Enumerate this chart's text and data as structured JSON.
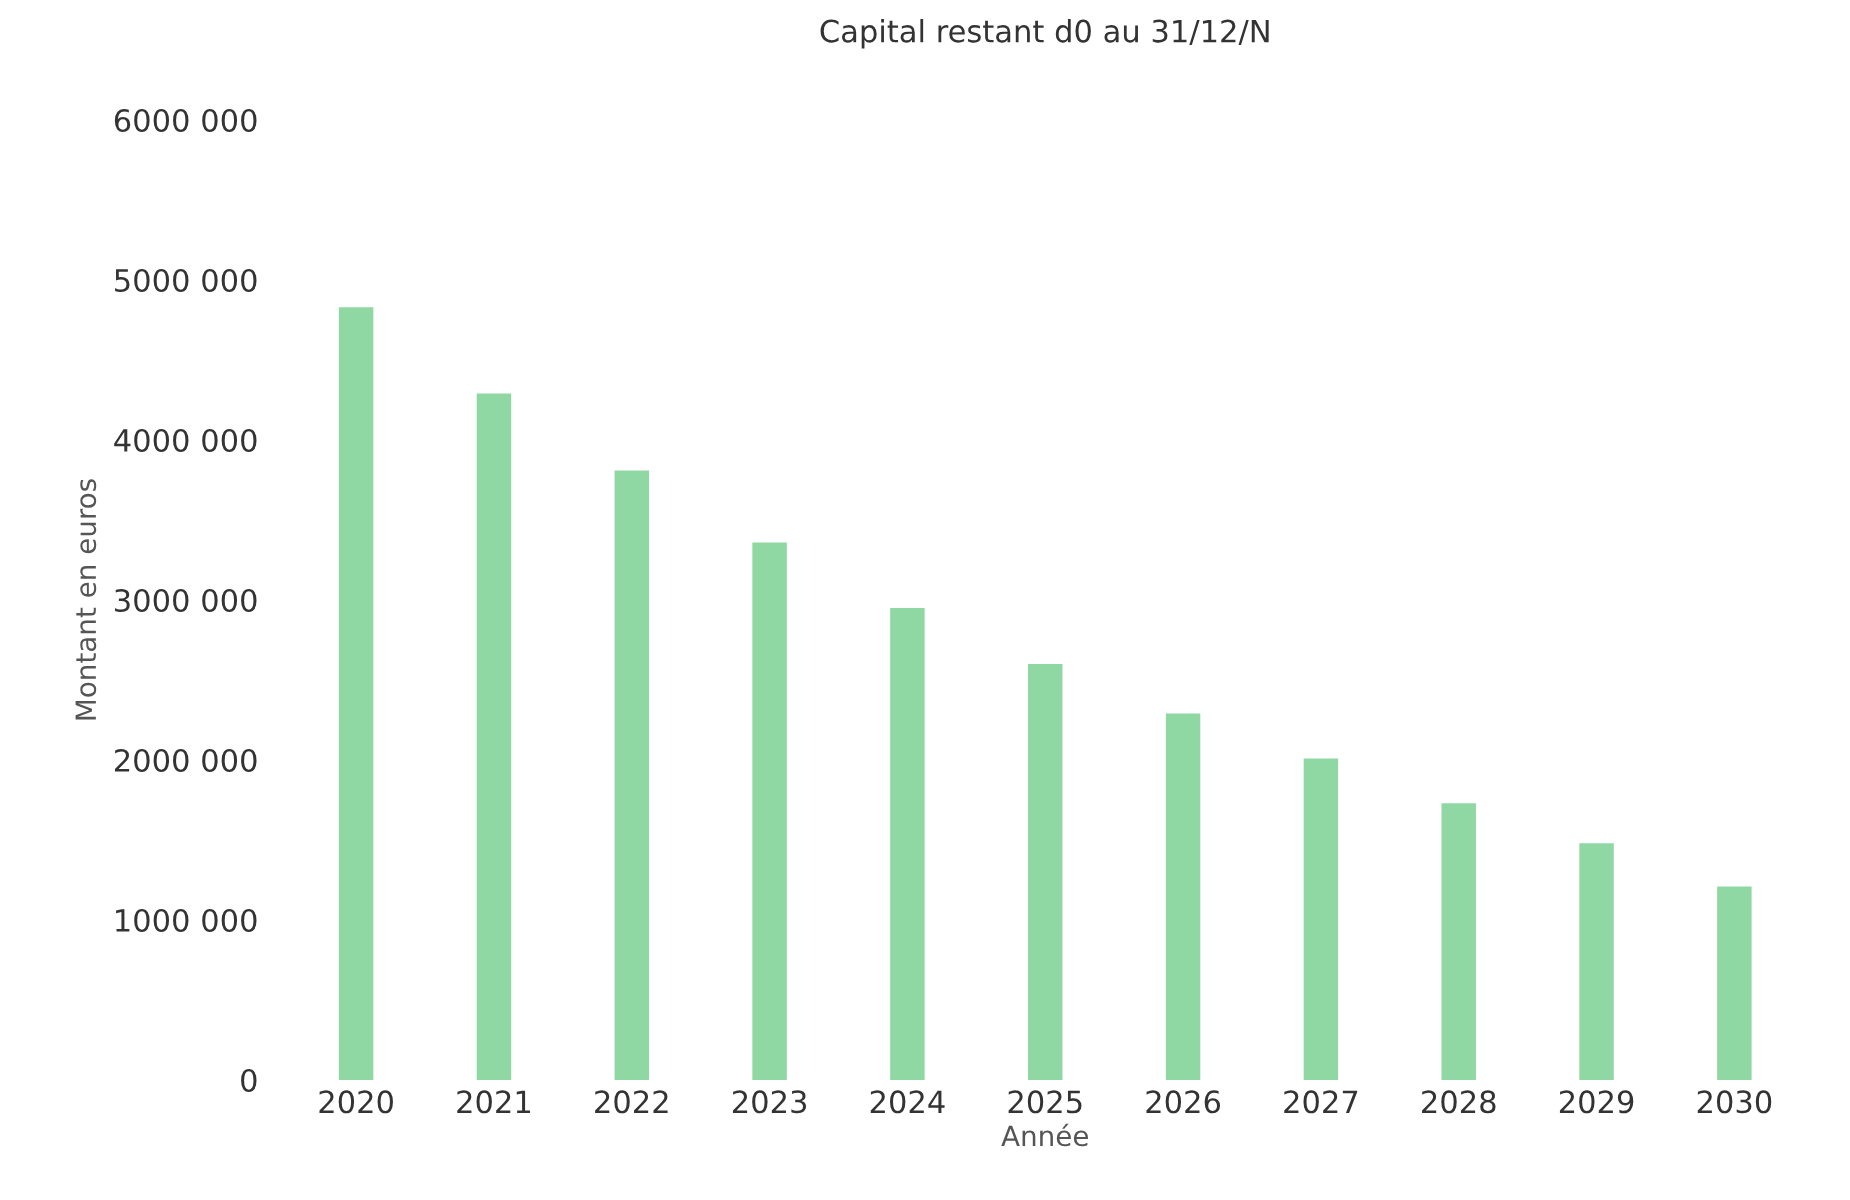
{
  "chart_data": {
    "type": "bar",
    "title": "Capital restant d0 au 31/12/N",
    "xlabel": "Année",
    "ylabel": "Montant en euros",
    "categories": [
      "2020",
      "2021",
      "2022",
      "2023",
      "2024",
      "2025",
      "2026",
      "2027",
      "2028",
      "2029",
      "2030"
    ],
    "values": [
      4830000,
      4290000,
      3810000,
      3360000,
      2950000,
      2600000,
      2290000,
      2010000,
      1730000,
      1480000,
      1210000
    ],
    "color": "#8fd8a3",
    "ylim": [
      0,
      6000000
    ],
    "yticks": [
      0,
      {
        "value": 1000000,
        "label": "1000 000"
      },
      {
        "value": 2000000,
        "label": "2000 000"
      },
      {
        "value": 3000000,
        "label": "3000 000"
      },
      {
        "value": 4000000,
        "label": "4000 000"
      },
      {
        "value": 5000000,
        "label": "5000 000"
      },
      {
        "value": 6000000,
        "label": "6000 000"
      }
    ],
    "grid": false,
    "legend": false
  }
}
